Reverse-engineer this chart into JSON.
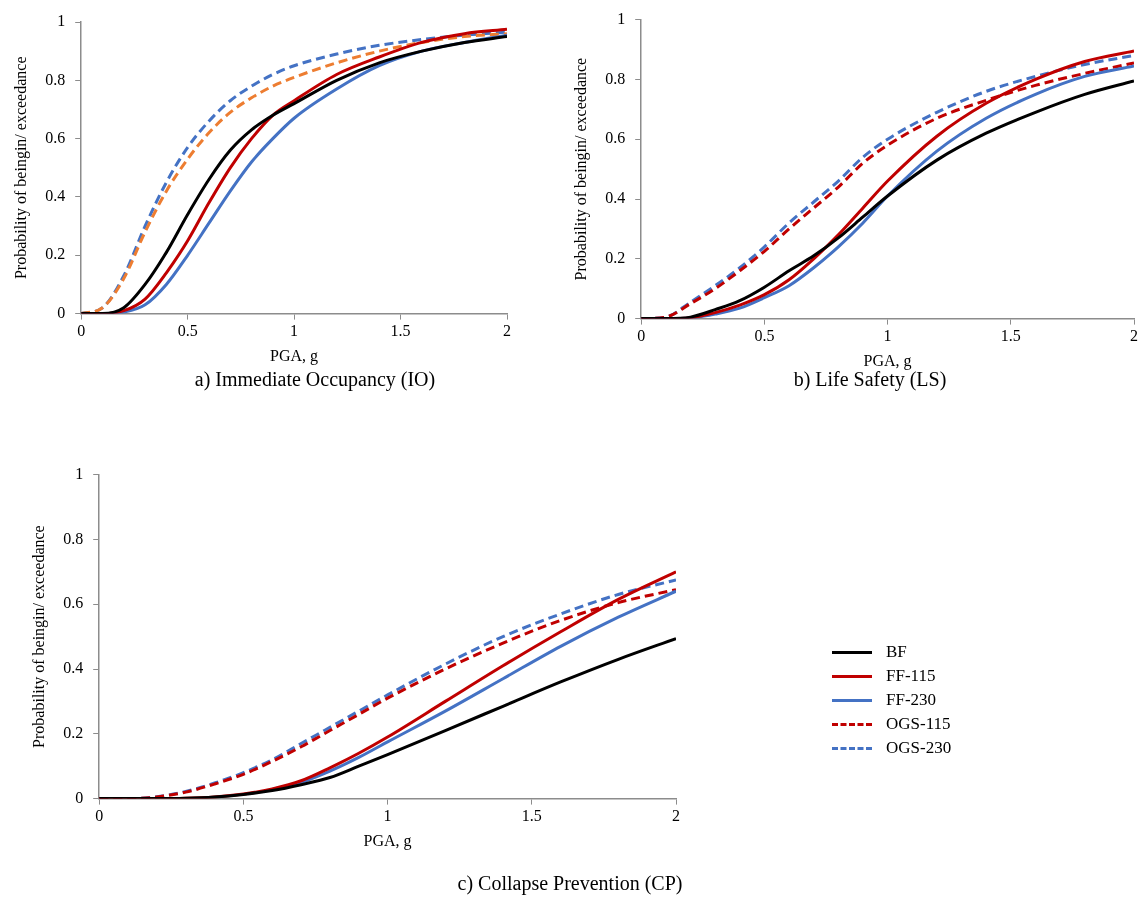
{
  "chart_data": [
    {
      "type": "line",
      "xlabel": "PGA, g",
      "ylabel": "Probability of beingin/ exceedance",
      "annotations": [
        "a)  Immediate Occupancy (IO)"
      ],
      "legend": false,
      "x": [
        0,
        0.1,
        0.2,
        0.3,
        0.4,
        0.5,
        0.6,
        0.7,
        0.8,
        0.9,
        1.0,
        1.2,
        1.4,
        1.6,
        1.8,
        2.0
      ],
      "xlim": [
        0,
        2
      ],
      "xticks": [
        0,
        0.5,
        1,
        1.5,
        2
      ],
      "ylim": [
        0,
        1
      ],
      "yticks": [
        0,
        0.2,
        0.4,
        0.6,
        0.8,
        1
      ],
      "series": [
        {
          "color": "#000000",
          "line_style": "solid",
          "values": [
            0,
            0,
            0.02,
            0.1,
            0.21,
            0.34,
            0.46,
            0.56,
            0.63,
            0.68,
            0.72,
            0.8,
            0.86,
            0.9,
            0.93,
            0.95
          ]
        },
        {
          "color": "#c00000",
          "line_style": "solid",
          "values": [
            0,
            0,
            0.01,
            0.05,
            0.14,
            0.25,
            0.38,
            0.5,
            0.6,
            0.68,
            0.73,
            0.82,
            0.88,
            0.93,
            0.96,
            0.975
          ]
        },
        {
          "color": "#4472c4",
          "line_style": "solid",
          "values": [
            0,
            0,
            0.005,
            0.03,
            0.1,
            0.2,
            0.31,
            0.42,
            0.52,
            0.6,
            0.67,
            0.77,
            0.85,
            0.9,
            0.93,
            0.955
          ]
        },
        {
          "color": "#ed7d31",
          "line_style": "dashed",
          "values": [
            0,
            0.02,
            0.12,
            0.28,
            0.42,
            0.53,
            0.62,
            0.69,
            0.74,
            0.78,
            0.81,
            0.86,
            0.9,
            0.93,
            0.95,
            0.96
          ]
        },
        {
          "color": "#4472c4",
          "line_style": "dashed",
          "values": [
            0,
            0.02,
            0.13,
            0.3,
            0.45,
            0.57,
            0.66,
            0.73,
            0.78,
            0.82,
            0.85,
            0.89,
            0.92,
            0.94,
            0.955,
            0.965
          ]
        }
      ]
    },
    {
      "type": "line",
      "xlabel": "PGA, g",
      "ylabel": "Probability of beingin/ exceedance",
      "annotations": [
        "b) Life Safety (LS)"
      ],
      "legend": false,
      "x": [
        0,
        0.1,
        0.2,
        0.3,
        0.4,
        0.5,
        0.6,
        0.7,
        0.8,
        0.9,
        1.0,
        1.2,
        1.4,
        1.6,
        1.8,
        2.0
      ],
      "xlim": [
        0,
        2
      ],
      "xticks": [
        0,
        0.5,
        1,
        1.5,
        2
      ],
      "ylim": [
        0,
        1
      ],
      "yticks": [
        0,
        0.2,
        0.4,
        0.6,
        0.8,
        1
      ],
      "series": [
        {
          "color": "#000000",
          "line_style": "solid",
          "values": [
            0,
            0,
            0.005,
            0.03,
            0.06,
            0.105,
            0.16,
            0.21,
            0.27,
            0.34,
            0.41,
            0.53,
            0.62,
            0.69,
            0.75,
            0.795
          ]
        },
        {
          "color": "#c00000",
          "line_style": "solid",
          "values": [
            0,
            0,
            0.003,
            0.02,
            0.045,
            0.08,
            0.13,
            0.2,
            0.28,
            0.37,
            0.46,
            0.61,
            0.72,
            0.8,
            0.86,
            0.895
          ]
        },
        {
          "color": "#4472c4",
          "line_style": "solid",
          "values": [
            0,
            0,
            0.002,
            0.015,
            0.035,
            0.07,
            0.11,
            0.17,
            0.24,
            0.32,
            0.41,
            0.56,
            0.67,
            0.75,
            0.81,
            0.845
          ]
        },
        {
          "color": "#c00000",
          "line_style": "dashed",
          "values": [
            0,
            0.005,
            0.05,
            0.1,
            0.16,
            0.225,
            0.3,
            0.37,
            0.44,
            0.52,
            0.58,
            0.67,
            0.73,
            0.78,
            0.82,
            0.855
          ]
        },
        {
          "color": "#4472c4",
          "line_style": "dashed",
          "values": [
            0,
            0.005,
            0.055,
            0.11,
            0.17,
            0.24,
            0.32,
            0.39,
            0.46,
            0.54,
            0.6,
            0.69,
            0.76,
            0.81,
            0.85,
            0.88
          ]
        }
      ]
    },
    {
      "type": "line",
      "xlabel": "PGA, g",
      "ylabel": "Probability of beingin/ exceedance",
      "annotations": [
        "c) Collapse Prevention (CP)"
      ],
      "legend": "right",
      "x": [
        0,
        0.1,
        0.2,
        0.3,
        0.4,
        0.5,
        0.6,
        0.7,
        0.8,
        0.9,
        1.0,
        1.2,
        1.4,
        1.6,
        1.8,
        2.0
      ],
      "xlim": [
        0,
        2
      ],
      "xticks": [
        0,
        0.5,
        1,
        1.5,
        2
      ],
      "ylim": [
        0,
        1
      ],
      "yticks": [
        0,
        0.2,
        0.4,
        0.6,
        0.8,
        1
      ],
      "series": [
        {
          "name": "BF",
          "color": "#000000",
          "line_style": "solid",
          "values": [
            0,
            0,
            0,
            0.001,
            0.005,
            0.013,
            0.025,
            0.043,
            0.065,
            0.1,
            0.136,
            0.21,
            0.285,
            0.36,
            0.43,
            0.494
          ]
        },
        {
          "name": "FF-115",
          "color": "#c00000",
          "line_style": "solid",
          "values": [
            0,
            0,
            0,
            0.001,
            0.005,
            0.014,
            0.03,
            0.055,
            0.095,
            0.14,
            0.19,
            0.3,
            0.41,
            0.515,
            0.615,
            0.7
          ]
        },
        {
          "name": "FF-230",
          "color": "#4472c4",
          "line_style": "solid",
          "values": [
            null,
            null,
            null,
            null,
            null,
            null,
            0.028,
            0.05,
            0.085,
            0.127,
            0.175,
            0.27,
            0.37,
            0.47,
            0.56,
            0.64
          ]
        },
        {
          "name": "OGS-115",
          "color": "#c00000",
          "line_style": "dashed",
          "values": [
            0,
            0,
            0.005,
            0.02,
            0.045,
            0.075,
            0.115,
            0.16,
            0.21,
            0.26,
            0.31,
            0.4,
            0.48,
            0.55,
            0.605,
            0.645
          ]
        },
        {
          "name": "OGS-230",
          "color": "#4472c4",
          "line_style": "dashed",
          "values": [
            0,
            0,
            0.006,
            0.022,
            0.048,
            0.08,
            0.12,
            0.17,
            0.22,
            0.27,
            0.32,
            0.415,
            0.5,
            0.57,
            0.63,
            0.675
          ]
        }
      ]
    }
  ]
}
